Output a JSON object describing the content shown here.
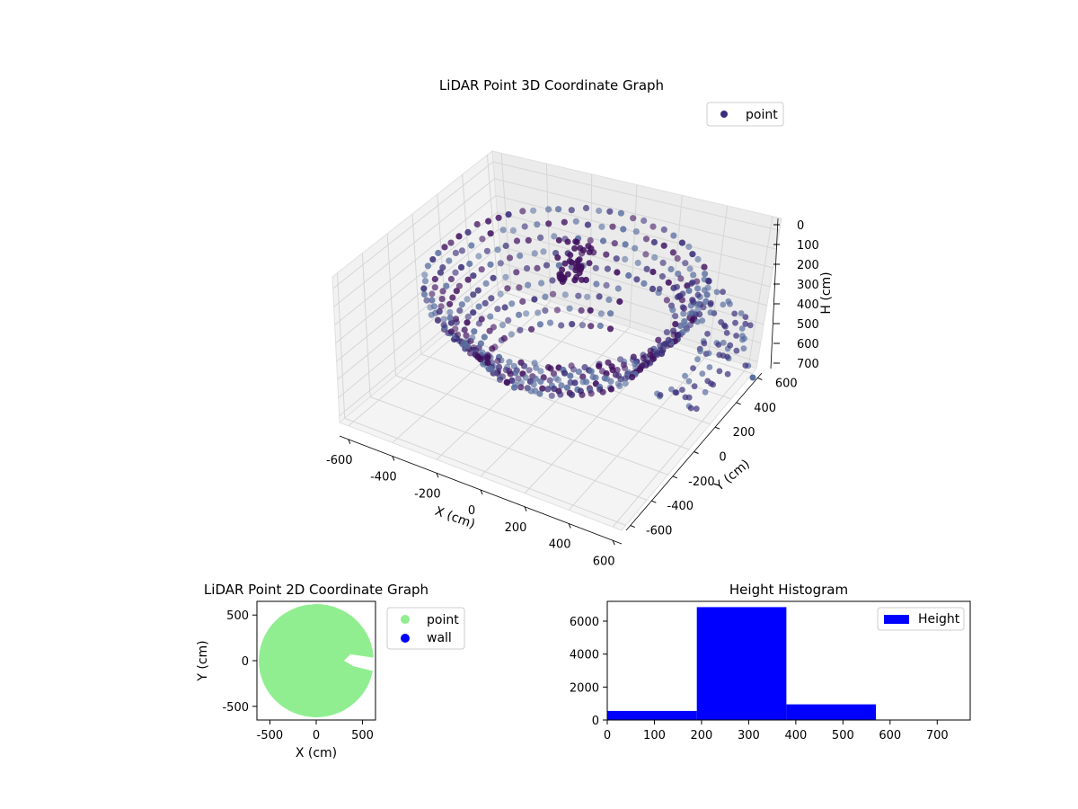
{
  "chart_data": [
    {
      "type": "scatter3d",
      "title": "LiDAR Point 3D Coordinate Graph",
      "xlabel": "X (cm)",
      "ylabel": "Y (cm)",
      "zlabel": "H (cm)",
      "xticks": [
        -600,
        -400,
        -200,
        0,
        200,
        400,
        600
      ],
      "yticks": [
        -600,
        -400,
        -200,
        0,
        200,
        400,
        600
      ],
      "zticks": [
        0,
        100,
        200,
        300,
        400,
        500,
        600,
        700
      ],
      "zaxis_inverted": true,
      "legend": {
        "entries": [
          "point"
        ],
        "placement": "upper-right"
      },
      "grid": true,
      "colors": {
        "point": "#3b2f7a",
        "point_light": "#5a6fa0",
        "point_dark": "#3f0f5e"
      }
    },
    {
      "type": "scatter",
      "title": "LiDAR Point 2D Coordinate Graph",
      "xlabel": "X (cm)",
      "ylabel": "Y (cm)",
      "xticks": [
        -500,
        0,
        500
      ],
      "yticks": [
        -500,
        0,
        500
      ],
      "xlim": [
        -640,
        640
      ],
      "ylim": [
        -650,
        650
      ],
      "series": [
        {
          "name": "point",
          "color": "#90ee90",
          "shape": "filled disc",
          "approx_radius": 620
        },
        {
          "name": "wall",
          "color": "#0000ff"
        }
      ],
      "legend": {
        "entries": [
          "point",
          "wall"
        ],
        "placement": "outside-right"
      },
      "grid": false
    },
    {
      "type": "bar",
      "title": "Height Histogram",
      "bins": [
        {
          "start": 0,
          "end": 190,
          "count": 550
        },
        {
          "start": 190,
          "end": 380,
          "count": 6850
        },
        {
          "start": 380,
          "end": 570,
          "count": 950
        },
        {
          "start": 570,
          "end": 760,
          "count": 10
        }
      ],
      "xticks": [
        0,
        100,
        200,
        300,
        400,
        500,
        600,
        700
      ],
      "yticks": [
        0,
        2000,
        4000,
        6000
      ],
      "xlim": [
        0,
        770
      ],
      "ylim": [
        0,
        7200
      ],
      "series": [
        {
          "name": "Height",
          "color": "#0000ff"
        }
      ],
      "legend": {
        "entries": [
          "Height"
        ],
        "placement": "upper-right"
      },
      "grid": false
    }
  ]
}
